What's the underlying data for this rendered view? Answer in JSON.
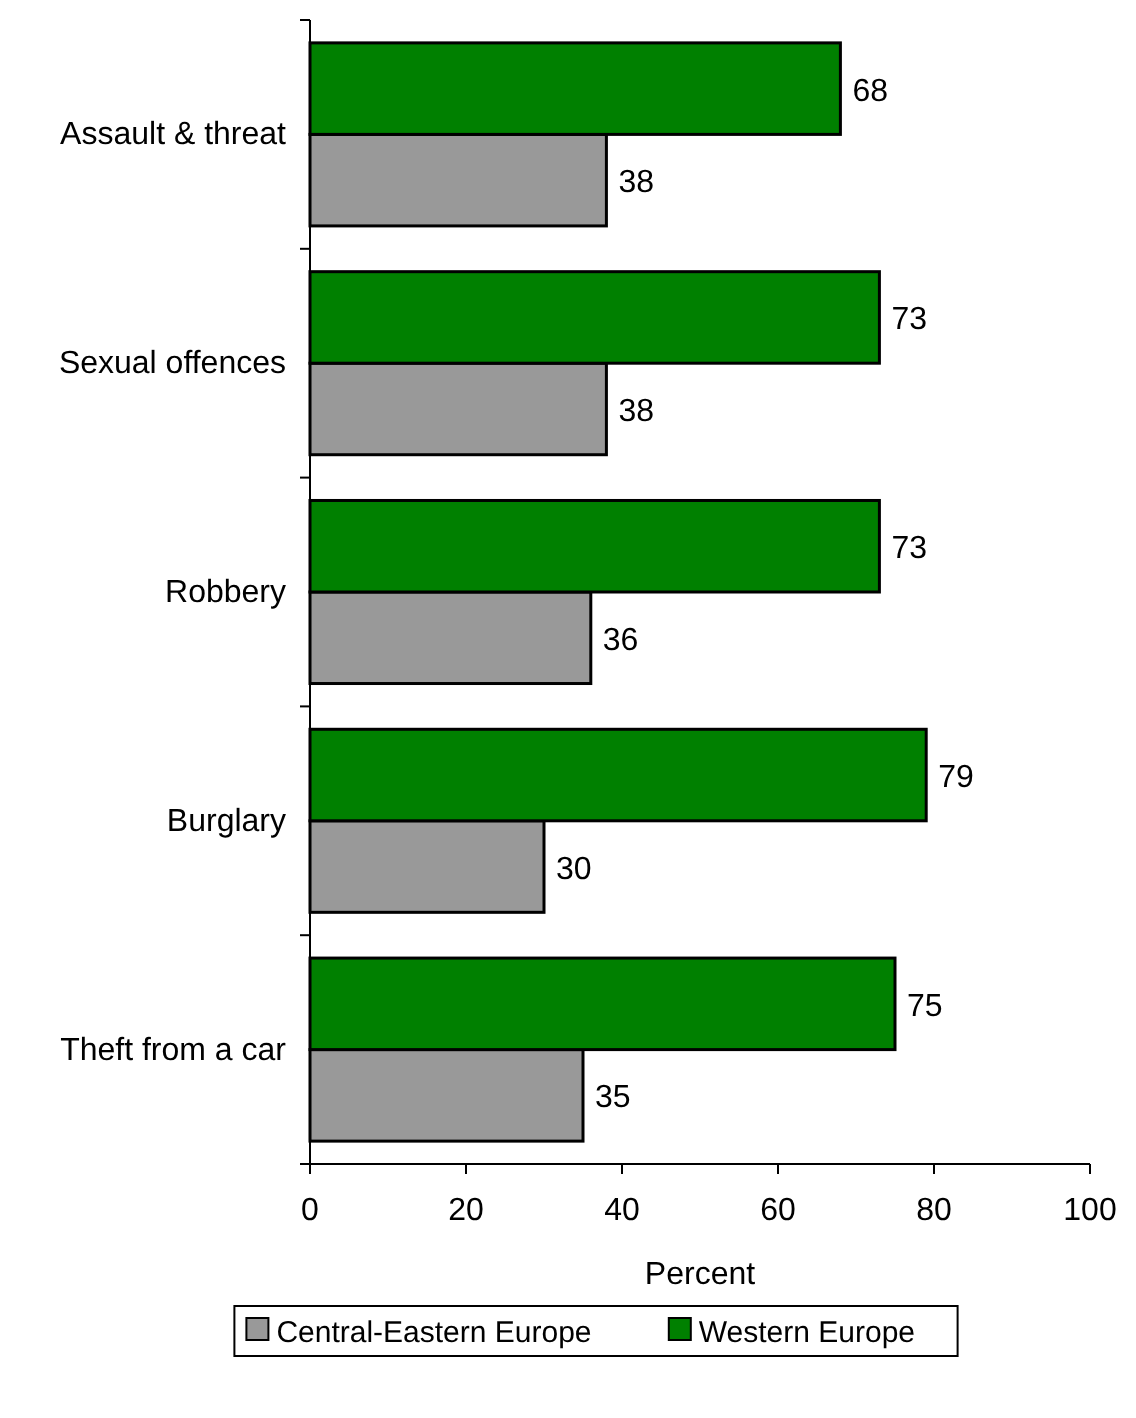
{
  "chart_data": {
    "type": "bar",
    "orientation": "horizontal",
    "categories": [
      "Assault & threat",
      "Sexual offences",
      "Robbery",
      "Burglary",
      "Theft from a car"
    ],
    "series": [
      {
        "name": "Central-Eastern Europe",
        "color": "#999999",
        "values": [
          38,
          38,
          36,
          30,
          35
        ]
      },
      {
        "name": "Western Europe",
        "color": "#008000",
        "values": [
          68,
          73,
          73,
          79,
          75
        ]
      }
    ],
    "xlim": [
      0,
      100
    ],
    "xticks": [
      0,
      20,
      40,
      60,
      80,
      100
    ],
    "xlabel": "Percent",
    "data_labels": true,
    "legend": "bottom",
    "grid": false
  }
}
